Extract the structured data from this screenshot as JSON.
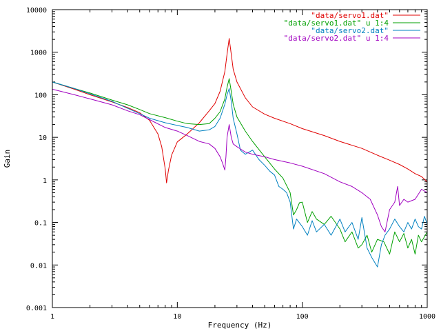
{
  "chart_data": {
    "type": "line",
    "xlabel": "Frequency (Hz)",
    "ylabel": "Gain",
    "x_scale": "log",
    "y_scale": "log",
    "xlim": [
      1,
      1000
    ],
    "ylim": [
      0.001,
      10000
    ],
    "grid": false,
    "legend_position": "top-right",
    "x_ticks": [
      {
        "value": 1,
        "label": "1"
      },
      {
        "value": 10,
        "label": "10"
      },
      {
        "value": 100,
        "label": "100"
      },
      {
        "value": 1000,
        "label": "1000"
      }
    ],
    "y_ticks": [
      {
        "value": 0.001,
        "label": "0.001"
      },
      {
        "value": 0.01,
        "label": "0.01"
      },
      {
        "value": 0.1,
        "label": "0.1"
      },
      {
        "value": 1,
        "label": "1"
      },
      {
        "value": 10,
        "label": "10"
      },
      {
        "value": 100,
        "label": "100"
      },
      {
        "value": 1000,
        "label": "1000"
      },
      {
        "value": 10000,
        "label": "10000"
      }
    ],
    "series": [
      {
        "name": "\"data/servo1.dat\"",
        "color": "#e00000",
        "points": [
          [
            1,
            200
          ],
          [
            1.5,
            135
          ],
          [
            2,
            100
          ],
          [
            3,
            68
          ],
          [
            4,
            50
          ],
          [
            5,
            38
          ],
          [
            6,
            25
          ],
          [
            7,
            12
          ],
          [
            7.5,
            6
          ],
          [
            8,
            1.8
          ],
          [
            8.2,
            0.85
          ],
          [
            8.5,
            1.7
          ],
          [
            9,
            3.8
          ],
          [
            10,
            7.8
          ],
          [
            12,
            12
          ],
          [
            15,
            22
          ],
          [
            18,
            42
          ],
          [
            20,
            62
          ],
          [
            22,
            120
          ],
          [
            24,
            350
          ],
          [
            25,
            900
          ],
          [
            26,
            2100
          ],
          [
            27,
            900
          ],
          [
            28,
            400
          ],
          [
            30,
            200
          ],
          [
            35,
            85
          ],
          [
            40,
            52
          ],
          [
            50,
            35
          ],
          [
            60,
            28
          ],
          [
            80,
            21
          ],
          [
            100,
            16
          ],
          [
            150,
            11
          ],
          [
            200,
            8
          ],
          [
            300,
            5.5
          ],
          [
            400,
            3.8
          ],
          [
            500,
            2.9
          ],
          [
            600,
            2.3
          ],
          [
            700,
            1.8
          ],
          [
            800,
            1.4
          ],
          [
            900,
            1.2
          ],
          [
            1000,
            0.9
          ]
        ]
      },
      {
        "name": "\"data/servo1.dat\" u 1:4",
        "color": "#00a000",
        "points": [
          [
            1,
            200
          ],
          [
            1.5,
            140
          ],
          [
            2,
            110
          ],
          [
            3,
            75
          ],
          [
            4,
            58
          ],
          [
            5,
            45
          ],
          [
            6,
            36
          ],
          [
            8,
            29
          ],
          [
            10,
            24
          ],
          [
            12,
            21
          ],
          [
            15,
            20
          ],
          [
            18,
            21
          ],
          [
            20,
            28
          ],
          [
            22,
            40
          ],
          [
            24,
            80
          ],
          [
            25,
            150
          ],
          [
            26,
            240
          ],
          [
            27,
            120
          ],
          [
            28,
            60
          ],
          [
            30,
            30
          ],
          [
            35,
            14
          ],
          [
            40,
            8
          ],
          [
            50,
            3.5
          ],
          [
            60,
            1.8
          ],
          [
            70,
            1.1
          ],
          [
            80,
            0.5
          ],
          [
            85,
            0.15
          ],
          [
            90,
            0.2
          ],
          [
            95,
            0.29
          ],
          [
            100,
            0.3
          ],
          [
            110,
            0.1
          ],
          [
            120,
            0.18
          ],
          [
            130,
            0.12
          ],
          [
            150,
            0.09
          ],
          [
            170,
            0.14
          ],
          [
            200,
            0.07
          ],
          [
            220,
            0.035
          ],
          [
            250,
            0.06
          ],
          [
            280,
            0.025
          ],
          [
            300,
            0.03
          ],
          [
            330,
            0.05
          ],
          [
            360,
            0.02
          ],
          [
            400,
            0.04
          ],
          [
            450,
            0.035
          ],
          [
            500,
            0.018
          ],
          [
            550,
            0.06
          ],
          [
            600,
            0.035
          ],
          [
            650,
            0.055
          ],
          [
            700,
            0.025
          ],
          [
            750,
            0.04
          ],
          [
            800,
            0.018
          ],
          [
            850,
            0.05
          ],
          [
            900,
            0.035
          ],
          [
            1000,
            0.06
          ]
        ]
      },
      {
        "name": "\"data/servo2.dat\"",
        "color": "#0080c0",
        "points": [
          [
            1,
            200
          ],
          [
            1.5,
            140
          ],
          [
            2,
            105
          ],
          [
            3,
            70
          ],
          [
            4,
            48
          ],
          [
            5,
            36
          ],
          [
            6,
            28
          ],
          [
            8,
            22
          ],
          [
            10,
            19
          ],
          [
            12,
            17
          ],
          [
            15,
            14
          ],
          [
            18,
            15
          ],
          [
            20,
            18
          ],
          [
            22,
            28
          ],
          [
            24,
            60
          ],
          [
            25,
            100
          ],
          [
            26,
            140
          ],
          [
            27,
            70
          ],
          [
            28,
            28
          ],
          [
            30,
            12
          ],
          [
            32,
            5
          ],
          [
            35,
            4
          ],
          [
            40,
            5
          ],
          [
            45,
            3
          ],
          [
            50,
            2.2
          ],
          [
            55,
            1.6
          ],
          [
            60,
            1.3
          ],
          [
            65,
            0.7
          ],
          [
            70,
            0.6
          ],
          [
            75,
            0.5
          ],
          [
            80,
            0.3
          ],
          [
            85,
            0.07
          ],
          [
            90,
            0.12
          ],
          [
            100,
            0.08
          ],
          [
            110,
            0.05
          ],
          [
            120,
            0.11
          ],
          [
            130,
            0.06
          ],
          [
            150,
            0.09
          ],
          [
            170,
            0.05
          ],
          [
            200,
            0.12
          ],
          [
            220,
            0.06
          ],
          [
            250,
            0.1
          ],
          [
            280,
            0.04
          ],
          [
            300,
            0.13
          ],
          [
            330,
            0.025
          ],
          [
            360,
            0.015
          ],
          [
            400,
            0.009
          ],
          [
            430,
            0.03
          ],
          [
            460,
            0.05
          ],
          [
            500,
            0.07
          ],
          [
            550,
            0.12
          ],
          [
            600,
            0.08
          ],
          [
            650,
            0.06
          ],
          [
            700,
            0.1
          ],
          [
            750,
            0.07
          ],
          [
            800,
            0.12
          ],
          [
            850,
            0.08
          ],
          [
            900,
            0.07
          ],
          [
            950,
            0.14
          ],
          [
            1000,
            0.09
          ]
        ]
      },
      {
        "name": "\"data/servo2.dat\" u 1:4",
        "color": "#a000c0",
        "points": [
          [
            1,
            135
          ],
          [
            1.5,
            100
          ],
          [
            2,
            80
          ],
          [
            3,
            58
          ],
          [
            4,
            42
          ],
          [
            5,
            34
          ],
          [
            6,
            26
          ],
          [
            8,
            17
          ],
          [
            10,
            14
          ],
          [
            12,
            11
          ],
          [
            15,
            8
          ],
          [
            18,
            7
          ],
          [
            20,
            5.5
          ],
          [
            22,
            3.5
          ],
          [
            23,
            2.5
          ],
          [
            24,
            1.7
          ],
          [
            24.5,
            3.5
          ],
          [
            25,
            10
          ],
          [
            26,
            20
          ],
          [
            27,
            10
          ],
          [
            28,
            7
          ],
          [
            30,
            6
          ],
          [
            35,
            4.5
          ],
          [
            40,
            4
          ],
          [
            50,
            3.5
          ],
          [
            60,
            3
          ],
          [
            80,
            2.5
          ],
          [
            100,
            2.1
          ],
          [
            150,
            1.4
          ],
          [
            200,
            0.9
          ],
          [
            250,
            0.7
          ],
          [
            300,
            0.5
          ],
          [
            350,
            0.35
          ],
          [
            400,
            0.15
          ],
          [
            430,
            0.08
          ],
          [
            460,
            0.06
          ],
          [
            500,
            0.2
          ],
          [
            550,
            0.3
          ],
          [
            580,
            0.7
          ],
          [
            600,
            0.25
          ],
          [
            650,
            0.35
          ],
          [
            700,
            0.3
          ],
          [
            800,
            0.35
          ],
          [
            900,
            0.6
          ],
          [
            1000,
            0.5
          ]
        ]
      }
    ]
  }
}
